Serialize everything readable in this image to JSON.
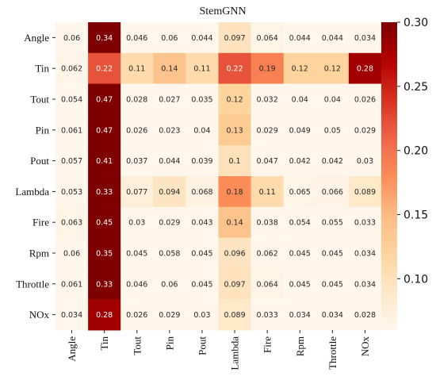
{
  "chart_data": {
    "type": "heatmap",
    "title": "StemGNN",
    "rows": [
      "Angle",
      "Tin",
      "Tout",
      "Pin",
      "Pout",
      "Lambda",
      "Fire",
      "Rpm",
      "Throttle",
      "NOx"
    ],
    "cols": [
      "Angle",
      "Tin",
      "Tout",
      "Pin",
      "Pout",
      "Lambda",
      "Fire",
      "Rpm",
      "Throttle",
      "NOx"
    ],
    "values": [
      [
        0.06,
        0.34,
        0.046,
        0.06,
        0.044,
        0.097,
        0.064,
        0.044,
        0.044,
        0.034
      ],
      [
        0.062,
        0.22,
        0.11,
        0.14,
        0.11,
        0.22,
        0.19,
        0.12,
        0.12,
        0.28
      ],
      [
        0.054,
        0.47,
        0.028,
        0.027,
        0.035,
        0.12,
        0.032,
        0.04,
        0.04,
        0.026
      ],
      [
        0.061,
        0.47,
        0.026,
        0.023,
        0.04,
        0.13,
        0.029,
        0.049,
        0.05,
        0.029
      ],
      [
        0.057,
        0.41,
        0.037,
        0.044,
        0.039,
        0.1,
        0.047,
        0.042,
        0.042,
        0.03
      ],
      [
        0.053,
        0.33,
        0.077,
        0.094,
        0.068,
        0.18,
        0.11,
        0.065,
        0.066,
        0.089
      ],
      [
        0.063,
        0.45,
        0.03,
        0.029,
        0.043,
        0.14,
        0.038,
        0.054,
        0.055,
        0.033
      ],
      [
        0.06,
        0.35,
        0.045,
        0.058,
        0.045,
        0.096,
        0.062,
        0.045,
        0.045,
        0.034
      ],
      [
        0.061,
        0.33,
        0.046,
        0.06,
        0.045,
        0.097,
        0.064,
        0.045,
        0.045,
        0.034
      ],
      [
        0.034,
        0.28,
        0.026,
        0.029,
        0.03,
        0.089,
        0.033,
        0.034,
        0.034,
        0.028
      ]
    ],
    "labels": [
      [
        "0.06",
        "0.34",
        "0.046",
        "0.06",
        "0.044",
        "0.097",
        "0.064",
        "0.044",
        "0.044",
        "0.034"
      ],
      [
        "0.062",
        "0.22",
        "0.11",
        "0.14",
        "0.11",
        "0.22",
        "0.19",
        "0.12",
        "0.12",
        "0.28"
      ],
      [
        "0.054",
        "0.47",
        "0.028",
        "0.027",
        "0.035",
        "0.12",
        "0.032",
        "0.04",
        "0.04",
        "0.026"
      ],
      [
        "0.061",
        "0.47",
        "0.026",
        "0.023",
        "0.04",
        "0.13",
        "0.029",
        "0.049",
        "0.05",
        "0.029"
      ],
      [
        "0.057",
        "0.41",
        "0.037",
        "0.044",
        "0.039",
        "0.1",
        "0.047",
        "0.042",
        "0.042",
        "0.03"
      ],
      [
        "0.053",
        "0.33",
        "0.077",
        "0.094",
        "0.068",
        "0.18",
        "0.11",
        "0.065",
        "0.066",
        "0.089"
      ],
      [
        "0.063",
        "0.45",
        "0.03",
        "0.029",
        "0.043",
        "0.14",
        "0.038",
        "0.054",
        "0.055",
        "0.033"
      ],
      [
        "0.06",
        "0.35",
        "0.045",
        "0.058",
        "0.045",
        "0.096",
        "0.062",
        "0.045",
        "0.045",
        "0.034"
      ],
      [
        "0.061",
        "0.33",
        "0.046",
        "0.06",
        "0.045",
        "0.097",
        "0.064",
        "0.045",
        "0.045",
        "0.034"
      ],
      [
        "0.034",
        "0.28",
        "0.026",
        "0.029",
        "0.03",
        "0.089",
        "0.033",
        "0.034",
        "0.034",
        "0.028"
      ]
    ],
    "colorbar": {
      "min": 0.06,
      "max": 0.3,
      "ticks": [
        "0.10",
        "0.15",
        "0.20",
        "0.25",
        "0.30"
      ],
      "colormap": "OrRd"
    },
    "colors": {
      "low": "#fff7ec",
      "high": "#7f0000",
      "text_dark": "#262626",
      "text_light": "#ffffff"
    }
  }
}
